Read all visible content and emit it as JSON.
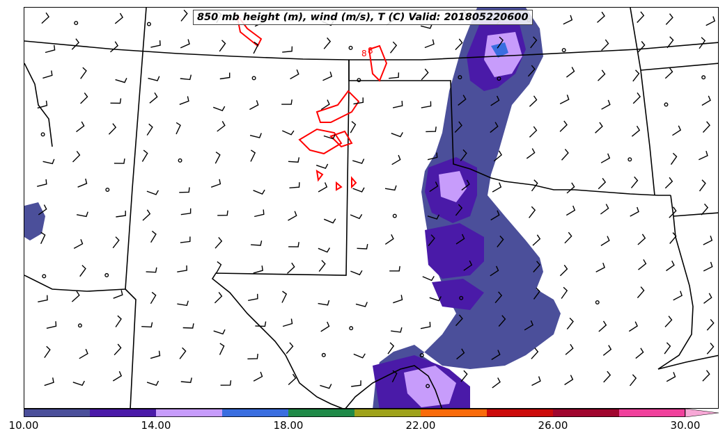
{
  "title": "850 mb height (m), wind (m/s), T (C) Valid: 201805220600",
  "colorbar": {
    "colors": [
      "#4b4f9a",
      "#4a1aa8",
      "#c79cfb",
      "#3a6ee0",
      "#1f8a48",
      "#9ea21a",
      "#fa6b0a",
      "#cc0a0a",
      "#a0062e",
      "#f0409c",
      "#f7a8d6"
    ],
    "tick_labels": [
      "10.00",
      "14.00",
      "18.00",
      "22.00",
      "26.00",
      "30.00"
    ],
    "extend": "max"
  },
  "contour": {
    "color": "#ff0000",
    "labels": [
      "8",
      "8"
    ]
  },
  "wind_symbols": {
    "color": "#000000",
    "calm": "circle",
    "barb": "flag-line"
  }
}
